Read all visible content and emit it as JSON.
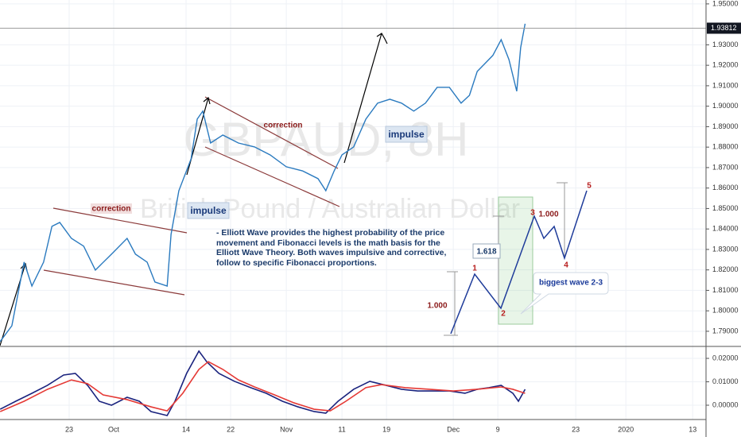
{
  "chart_data": [
    {
      "type": "line",
      "watermark": "GBPAUD, 8H",
      "subtitle": "British Pound / Australian Dollar",
      "last_price": 1.93812,
      "last_price_label": "1.93812",
      "annotations": [
        "correction",
        "correction",
        "impulse",
        "impulse",
        "-  Elliott Wave provides the highest probability of the price movement and Fibonacci levels is the math basis for the Elliott Wave Theory. Both waves impulsive and corrective, follow to specific Fibonacci proportions.",
        "1.618",
        "1.000",
        "1.000",
        "1",
        "2",
        "3",
        "4",
        "5",
        "biggest wave 2-3"
      ],
      "xlim": [
        9.57,
        136.4
      ],
      "xticks": [
        {
          "value": 22,
          "label": "23"
        },
        {
          "value": 30,
          "label": "Oct"
        },
        {
          "value": 43,
          "label": "14"
        },
        {
          "value": 51,
          "label": "22"
        },
        {
          "value": 61,
          "label": "Nov"
        },
        {
          "value": 71,
          "label": "11"
        },
        {
          "value": 79,
          "label": "19"
        },
        {
          "value": 91,
          "label": "Dec"
        },
        {
          "value": 99,
          "label": "9"
        },
        {
          "value": 113,
          "label": "23"
        },
        {
          "value": 122,
          "label": "2020"
        },
        {
          "value": 134,
          "label": "13"
        }
      ],
      "ylim": [
        1.7826,
        1.9519
      ],
      "yticks": [
        {
          "value": 1.79,
          "label": "1.79000"
        },
        {
          "value": 1.8,
          "label": "1.80000"
        },
        {
          "value": 1.81,
          "label": "1.81000"
        },
        {
          "value": 1.82,
          "label": "1.82000"
        },
        {
          "value": 1.83,
          "label": "1.83000"
        },
        {
          "value": 1.84,
          "label": "1.84000"
        },
        {
          "value": 1.85,
          "label": "1.85000"
        },
        {
          "value": 1.86,
          "label": "1.86000"
        },
        {
          "value": 1.87,
          "label": "1.87000"
        },
        {
          "value": 1.88,
          "label": "1.88000"
        },
        {
          "value": 1.89,
          "label": "1.89000"
        },
        {
          "value": 1.9,
          "label": "1.90000"
        },
        {
          "value": 1.91,
          "label": "1.91000"
        },
        {
          "value": 1.92,
          "label": "1.92000"
        },
        {
          "value": 1.93,
          "label": "1.93000"
        },
        {
          "value": 1.95,
          "label": "1.95000"
        }
      ],
      "grid": true,
      "series": [
        {
          "color": "#2a7abf",
          "x": [
            9.6,
            11.7,
            13.9,
            15.3,
            17.4,
            18.9,
            20.3,
            22.4,
            24.6,
            26.7,
            29.6,
            32.4,
            33.9,
            36.0,
            37.4,
            39.6,
            40.3,
            41.7,
            43.9,
            45.0,
            46.0,
            47.4,
            49.6,
            52.4,
            55.3,
            58.1,
            61.0,
            63.9,
            66.7,
            68.1,
            69.6,
            71.0,
            73.1,
            75.3,
            77.4,
            79.6,
            81.7,
            83.9,
            86.0,
            88.1,
            90.3,
            92.4,
            93.9,
            95.3,
            96.7,
            98.1,
            99.6,
            101.0,
            102.4,
            103.1,
            103.9
          ],
          "values": [
            1.785,
            1.7927,
            1.8238,
            1.8121,
            1.8238,
            1.8413,
            1.8432,
            1.8354,
            1.8316,
            1.8199,
            1.8277,
            1.8354,
            1.8277,
            1.8238,
            1.8141,
            1.8121,
            1.8374,
            1.8587,
            1.8743,
            1.8937,
            1.8976,
            1.882,
            1.8859,
            1.882,
            1.8801,
            1.8762,
            1.8704,
            1.8684,
            1.8646,
            1.8587,
            1.8684,
            1.8762,
            1.8801,
            1.8937,
            1.9015,
            1.9034,
            1.9015,
            1.8976,
            1.9015,
            1.9092,
            1.9092,
            1.9015,
            1.9053,
            1.917,
            1.9209,
            1.9248,
            1.9325,
            1.9228,
            1.9073,
            1.9286,
            1.9403
          ]
        }
      ]
    },
    {
      "type": "line",
      "ylim": [
        -0.0061,
        0.0251
      ],
      "yticks": [
        {
          "value": 0,
          "label": "0.00000"
        },
        {
          "value": 0.01,
          "label": "0.01000"
        },
        {
          "value": 0.02,
          "label": "0.02000"
        }
      ],
      "series": [
        {
          "color": "#1a237e",
          "x": [
            9.6,
            12.4,
            15.3,
            18.1,
            21.0,
            23.1,
            25.3,
            27.4,
            29.6,
            32.4,
            34.6,
            36.7,
            39.6,
            41.0,
            43.1,
            45.3,
            46.7,
            48.9,
            51.7,
            54.6,
            57.4,
            60.3,
            63.1,
            66.0,
            68.1,
            70.3,
            73.1,
            76.0,
            78.9,
            81.7,
            84.6,
            87.4,
            90.3,
            93.1,
            95.3,
            97.4,
            99.6,
            101.7,
            102.7,
            103.9
          ],
          "values": [
            -0.0017,
            0.0017,
            0.0051,
            0.0085,
            0.0129,
            0.0136,
            0.0085,
            0.0017,
            0,
            0.0034,
            0.0017,
            -0.0027,
            -0.0044,
            0.0017,
            0.0136,
            0.0231,
            0.0186,
            0.0136,
            0.0102,
            0.0075,
            0.0051,
            0.0017,
            -0.0007,
            -0.0027,
            -0.0034,
            0.0017,
            0.0068,
            0.0102,
            0.0085,
            0.0068,
            0.0061,
            0.0061,
            0.0061,
            0.0051,
            0.0068,
            0.0075,
            0.0085,
            0.0051,
            0.0017,
            0.0068
          ]
        },
        {
          "color": "#e53935",
          "x": [
            9.6,
            13.9,
            18.1,
            22.4,
            25.3,
            28.1,
            32.4,
            36.7,
            39.6,
            42.4,
            45.3,
            47.0,
            49.6,
            52.4,
            55.3,
            58.9,
            62.4,
            66.0,
            68.9,
            71.7,
            75.3,
            78.1,
            82.4,
            86.7,
            91.0,
            95.3,
            99.6,
            101.7,
            103.9
          ],
          "values": [
            -0.0027,
            0.0017,
            0.0068,
            0.0108,
            0.0092,
            0.0044,
            0.0024,
            -0.0007,
            -0.0024,
            0.0051,
            0.0153,
            0.0186,
            0.0153,
            0.0108,
            0.0078,
            0.0044,
            0.001,
            -0.0017,
            -0.0024,
            0.0017,
            0.0075,
            0.0088,
            0.0075,
            0.0068,
            0.0061,
            0.0068,
            0.0078,
            0.0068,
            0.0051
          ]
        }
      ]
    }
  ]
}
